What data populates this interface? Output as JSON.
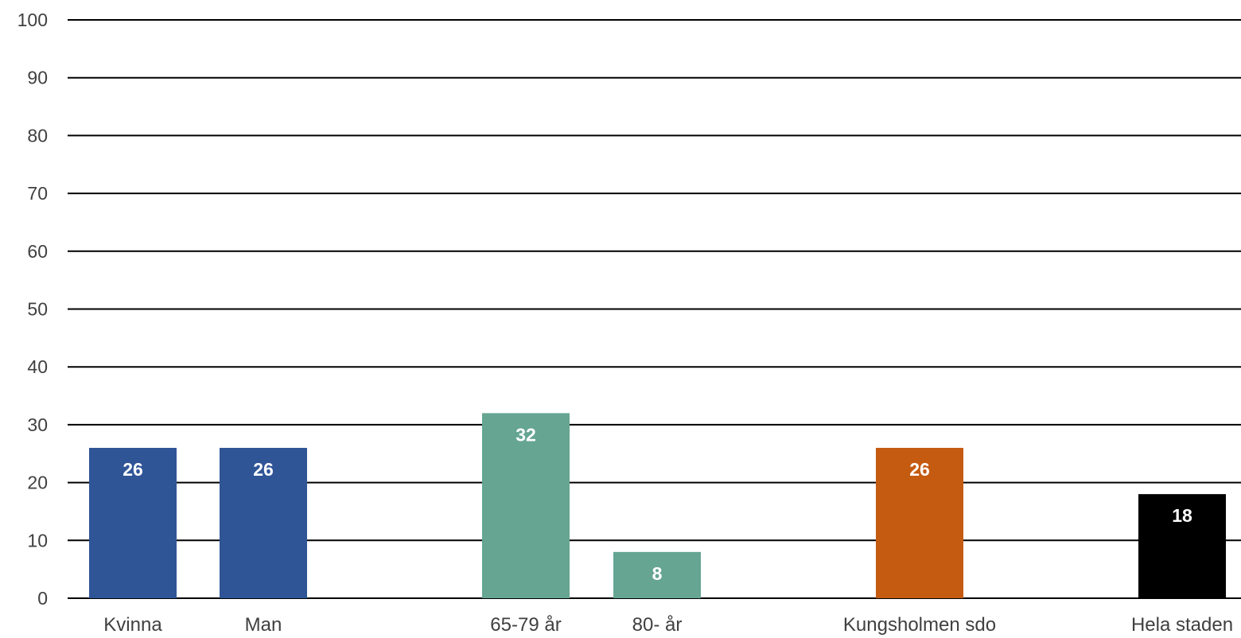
{
  "chart_data": {
    "type": "bar",
    "title": "",
    "xlabel": "",
    "ylabel": "",
    "ylim": [
      0,
      100
    ],
    "yticks": [
      0,
      10,
      20,
      30,
      40,
      50,
      60,
      70,
      80,
      90,
      100
    ],
    "grid": true,
    "legend": "none",
    "categories": [
      "Kvinna",
      "Man",
      "65-79 år",
      "80- år",
      "Kungsholmen sdo",
      "Hela staden"
    ],
    "values": [
      26,
      26,
      32,
      8,
      26,
      18
    ],
    "data_labels": [
      "26",
      "26",
      "32",
      "8",
      "26",
      "18"
    ],
    "colors": [
      "#2f5597",
      "#2f5597",
      "#65a592",
      "#65a592",
      "#c55a11",
      "#000000"
    ]
  }
}
